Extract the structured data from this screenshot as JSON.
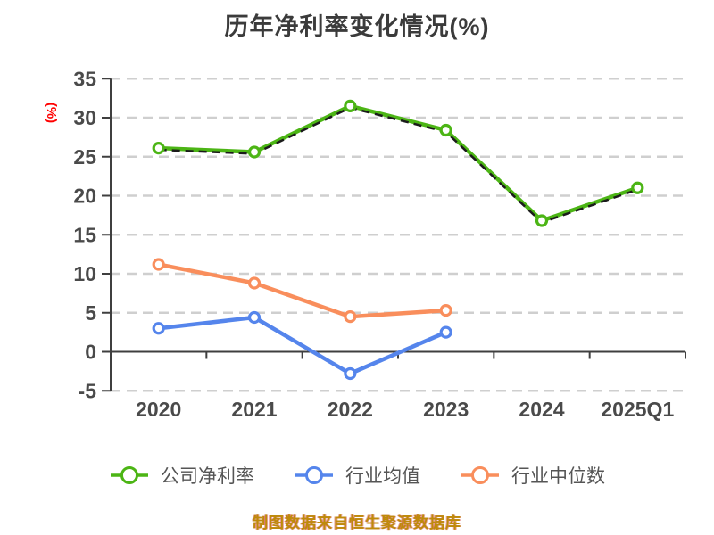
{
  "chart_data": {
    "type": "line",
    "title": "历年净利率变化情况(%)",
    "title_color": "#3B3B3B",
    "y_axis": {
      "unit": "(%)",
      "unit_color": "#FF0000",
      "ticks": [
        35,
        30,
        25,
        20,
        15,
        10,
        5,
        0,
        -5
      ],
      "min": -5,
      "max": 35
    },
    "x_axis": {
      "categories": [
        "2020",
        "2021",
        "2022",
        "2023",
        "2024",
        "2025Q1"
      ]
    },
    "grid": {
      "style": "horizontal-dashed",
      "color": "#CFCFCF"
    },
    "axis_color": "#3F3F3F",
    "tick_label_color": "#4A4A4A",
    "legend_text_color": "#555555",
    "legend_position": "bottom",
    "series": [
      {
        "name": "公司净利率",
        "color": "#4CB515",
        "marker": "hollow-circle",
        "values": [
          26.1,
          25.6,
          31.5,
          28.4,
          16.8,
          21.0
        ],
        "black_dashed_overlay": true
      },
      {
        "name": "行业均值",
        "color": "#5585EC",
        "marker": "hollow-circle",
        "values": [
          3.0,
          4.4,
          -2.8,
          2.5
        ]
      },
      {
        "name": "行业中位数",
        "color": "#F98E5C",
        "marker": "hollow-circle",
        "values": [
          11.2,
          8.8,
          4.5,
          5.3
        ]
      }
    ],
    "source_note": "制图数据来自恒生聚源数据库",
    "source_note_color": "#BE8B0A"
  }
}
